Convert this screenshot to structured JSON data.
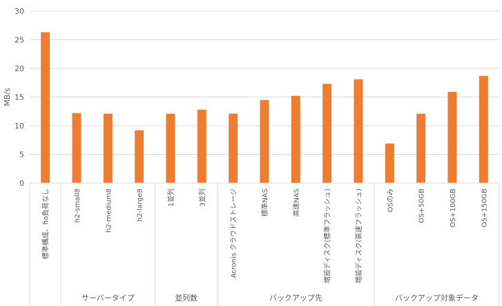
{
  "chart_data": {
    "type": "bar",
    "ylabel": "MB/s",
    "ylim": [
      0,
      30
    ],
    "yticks": [
      0,
      5,
      10,
      15,
      20,
      25,
      30
    ],
    "grid": true,
    "bar_color": "#ED7D31",
    "grid_color": "#D9D9D9",
    "categories": [
      "標準構成、fio負荷なし",
      "h2-small8",
      "h2-medium8",
      "h2-large8",
      "1並列",
      "3並列",
      "Acronis クラウドストレージ",
      "標準NAS",
      "高速NAS",
      "増設ディスク(標準フラッシュ)",
      "増設ディスク(高速フラッシュ)",
      "OSのみ",
      "OS+50GB",
      "OS+100GB",
      "OS+150GB"
    ],
    "values": [
      26.3,
      12.2,
      12.1,
      9.2,
      12.1,
      12.8,
      12.1,
      14.5,
      15.2,
      17.3,
      18.1,
      6.9,
      12.1,
      15.9,
      18.7
    ],
    "groups": [
      {
        "label": "",
        "start": 0,
        "count": 1
      },
      {
        "label": "サーバータイプ",
        "start": 1,
        "count": 3
      },
      {
        "label": "並列数",
        "start": 4,
        "count": 2
      },
      {
        "label": "バックアップ先",
        "start": 6,
        "count": 5
      },
      {
        "label": "バックアップ対象データ",
        "start": 11,
        "count": 4
      }
    ]
  }
}
